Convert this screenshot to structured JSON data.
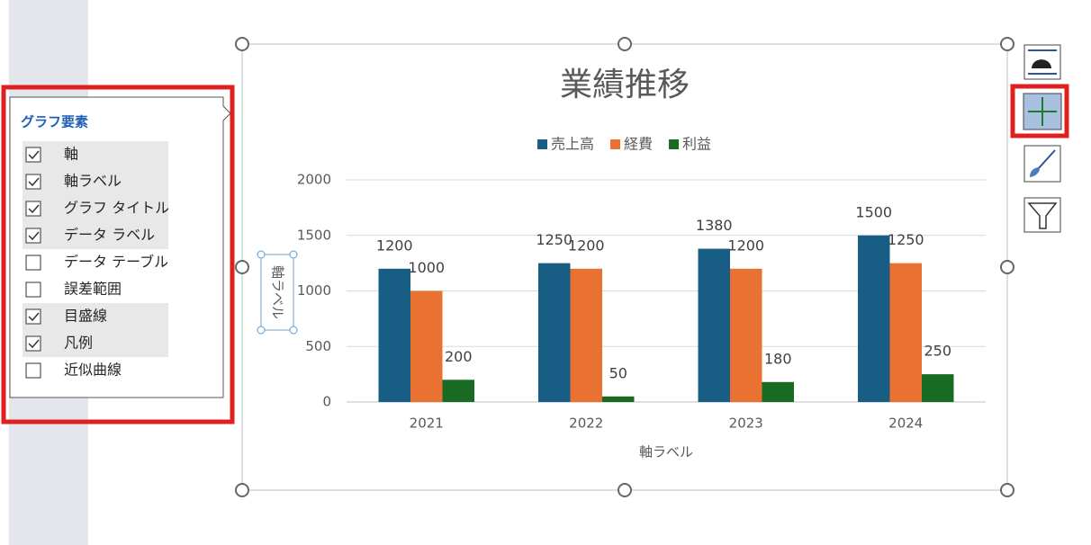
{
  "chart_data": {
    "type": "bar",
    "title": "業績推移",
    "categories": [
      "2021",
      "2022",
      "2023",
      "2024"
    ],
    "series": [
      {
        "name": "売上高",
        "color": "#185e84",
        "values": [
          1200,
          1250,
          1380,
          1500
        ]
      },
      {
        "name": "経費",
        "color": "#e97132",
        "values": [
          1000,
          1200,
          1200,
          1250
        ]
      },
      {
        "name": "利益",
        "color": "#196b24",
        "values": [
          200,
          50,
          180,
          250
        ]
      }
    ],
    "ylim": [
      0,
      2000
    ],
    "yticks": [
      0,
      500,
      1000,
      1500,
      2000
    ],
    "grid": true,
    "x_label": "軸ラベル",
    "y_label": "軸ラベル",
    "legend": "top"
  },
  "panel": {
    "title": "グラフ要素",
    "items": [
      {
        "label": "軸",
        "checked": true
      },
      {
        "label": "軸ラベル",
        "checked": true
      },
      {
        "label": "グラフ タイトル",
        "checked": true
      },
      {
        "label": "データ ラベル",
        "checked": true
      },
      {
        "label": "データ テーブル",
        "checked": false
      },
      {
        "label": "誤差範囲",
        "checked": false
      },
      {
        "label": "目盛線",
        "checked": true
      },
      {
        "label": "凡例",
        "checked": true
      },
      {
        "label": "近似曲線",
        "checked": false
      }
    ]
  }
}
